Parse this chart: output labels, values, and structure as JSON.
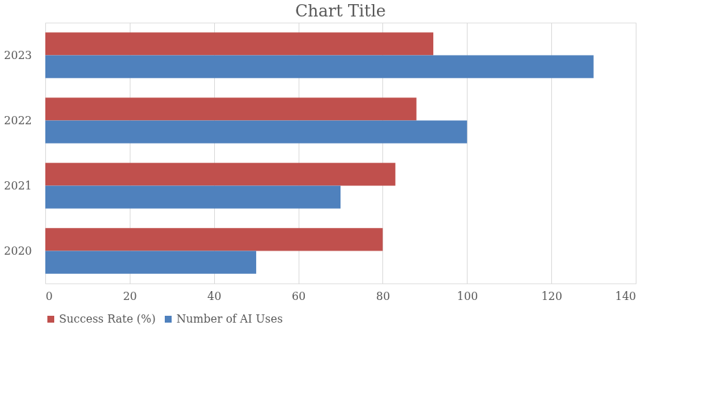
{
  "chart_data": {
    "type": "bar",
    "orientation": "horizontal",
    "title": "Chart Title",
    "categories": [
      "2023",
      "2022",
      "2021",
      "2020"
    ],
    "series": [
      {
        "name": "Success Rate (%)",
        "color": "#c0504d",
        "values": [
          92,
          88,
          83,
          80
        ]
      },
      {
        "name": "Number of AI Uses",
        "color": "#4f81bd",
        "values": [
          130,
          100,
          70,
          50
        ]
      }
    ],
    "xlim": [
      0,
      140
    ],
    "xticks": [
      0,
      20,
      40,
      60,
      80,
      100,
      120,
      140
    ],
    "grid": "x",
    "legend": "bottom"
  }
}
